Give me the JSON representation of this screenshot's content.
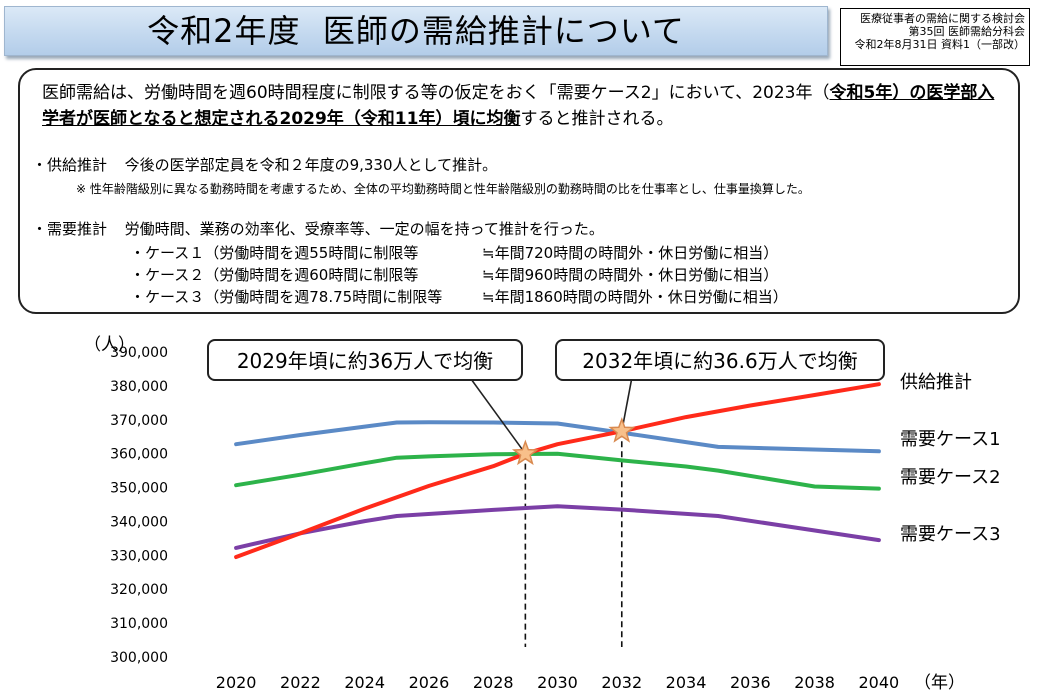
{
  "header": {
    "title": "令和2年度  医師の需給推計について",
    "meta_lines": [
      "医療従事者の需給に関する検討会",
      "第35回  医師需給分科会",
      "令和2年8月31日  資料1（一部改）"
    ]
  },
  "summary": {
    "lead_pre": "医師需給は、労働時間を週60時間程度に制限する等の仮定をおく「需要ケース2」において、2023年（",
    "lead_bold": "令和5年）の医学部入学者が医師となると想定される2029年（令和11年）頃に均衡",
    "lead_post": "すると推計される。",
    "supply_label": "・供給推計",
    "supply_text": "今後の医学部定員を令和２年度の9,330人として推計。",
    "supply_note": "※  性年齢階級別に異なる勤務時間を考慮するため、全体の平均勤務時間と性年齢階級別の勤務時間の比を仕事率とし、仕事量換算した。",
    "demand_label": "・需要推計",
    "demand_text": "労働時間、業務の効率化、受療率等、一定の幅を持って推計を行った。",
    "cases": [
      {
        "label": "・ケース１（労働時間を週55時間に制限等",
        "equiv": "≒年間720時間の時間外・休日労働に相当）"
      },
      {
        "label": "・ケース２（労働時間を週60時間に制限等",
        "equiv": "≒年間960時間の時間外・休日労働に相当）"
      },
      {
        "label": "・ケース３（労働時間を週78.75時間に制限等",
        "equiv": "≒年間1860時間の時間外・休日労働に相当）"
      }
    ]
  },
  "colors": {
    "supply": "#ff2a1a",
    "case1": "#5b8ac6",
    "case2": "#2db34a",
    "case3": "#7b3fa6",
    "star": "#f8c08a",
    "star_stroke": "#d98a50"
  },
  "chart_data": {
    "type": "line",
    "ylabel": "（人）",
    "xlabel": "（年）",
    "ylim": [
      300000,
      390000
    ],
    "yticks": [
      300000,
      310000,
      320000,
      330000,
      340000,
      350000,
      360000,
      370000,
      380000,
      390000
    ],
    "ytick_labels": [
      "300,000",
      "310,000",
      "320,000",
      "330,000",
      "340,000",
      "350,000",
      "360,000",
      "370,000",
      "380,000",
      "390,000"
    ],
    "xlim": [
      2019,
      2041
    ],
    "xticks": [
      2020,
      2022,
      2024,
      2026,
      2028,
      2030,
      2032,
      2034,
      2036,
      2038,
      2040
    ],
    "series": [
      {
        "name": "供給推計",
        "color_key": "supply",
        "x": [
          2020,
          2022,
          2024,
          2026,
          2028,
          2029,
          2030,
          2032,
          2034,
          2036,
          2038,
          2040
        ],
        "values": [
          329500,
          336500,
          343800,
          350500,
          356300,
          360000,
          362800,
          366600,
          370800,
          374200,
          377300,
          380500
        ]
      },
      {
        "name": "需要ケース1",
        "color_key": "case1",
        "x": [
          2020,
          2022,
          2024,
          2025,
          2026,
          2028,
          2030,
          2032,
          2035,
          2040
        ],
        "values": [
          362800,
          365500,
          368000,
          369200,
          369300,
          369200,
          368900,
          366200,
          362000,
          360700
        ]
      },
      {
        "name": "需要ケース2",
        "color_key": "case2",
        "x": [
          2020,
          2022,
          2024,
          2025,
          2026,
          2028,
          2030,
          2032,
          2034,
          2035,
          2038,
          2040
        ],
        "values": [
          350700,
          353800,
          357200,
          358800,
          359200,
          359800,
          360000,
          358000,
          356200,
          355000,
          350300,
          349700
        ]
      },
      {
        "name": "需要ケース3",
        "color_key": "case3",
        "x": [
          2020,
          2022,
          2024,
          2025,
          2028,
          2030,
          2032,
          2035,
          2040
        ],
        "values": [
          332200,
          336500,
          340100,
          341600,
          343400,
          344500,
          343500,
          341600,
          334500
        ]
      }
    ],
    "annotations": [
      {
        "text": "2029年頃に約36万人で均衡",
        "x": 2029,
        "y": 360000
      },
      {
        "text": "2032年頃に約36.6万人で均衡",
        "x": 2032,
        "y": 366600
      }
    ]
  }
}
